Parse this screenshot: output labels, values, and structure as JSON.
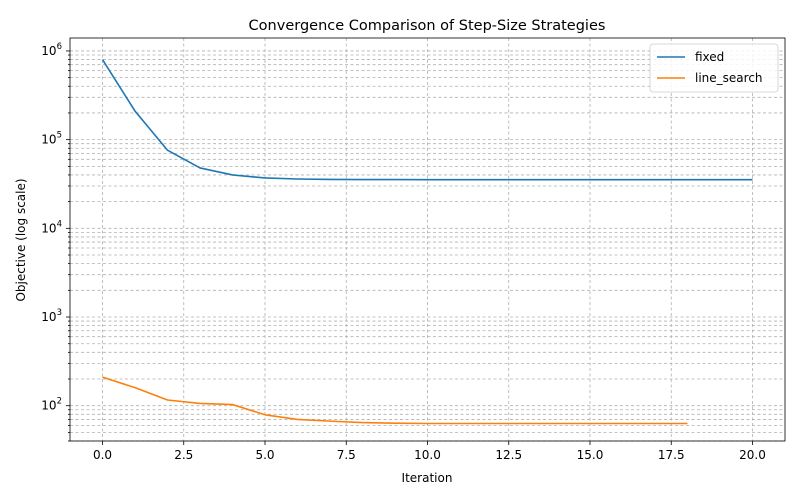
{
  "chart_data": {
    "type": "line",
    "title": "Convergence Comparison of Step-Size Strategies",
    "xlabel": "Iteration",
    "ylabel": "Objective (log scale)",
    "xlim": [
      -1,
      21
    ],
    "ylim": [
      40,
      1400000
    ],
    "yscale": "log",
    "grid": "on (major and minor, dashed)",
    "legend_position": "top-right",
    "x_ticks": [
      {
        "value": 0.0,
        "label": "0.0"
      },
      {
        "value": 2.5,
        "label": "2.5"
      },
      {
        "value": 5.0,
        "label": "5.0"
      },
      {
        "value": 7.5,
        "label": "7.5"
      },
      {
        "value": 10.0,
        "label": "10.0"
      },
      {
        "value": 12.5,
        "label": "12.5"
      },
      {
        "value": 15.0,
        "label": "15.0"
      },
      {
        "value": 17.5,
        "label": "17.5"
      },
      {
        "value": 20.0,
        "label": "20.0"
      }
    ],
    "y_ticks": [
      {
        "value": 100,
        "base": "10",
        "exp": "2"
      },
      {
        "value": 1000,
        "base": "10",
        "exp": "3"
      },
      {
        "value": 10000,
        "base": "10",
        "exp": "4"
      },
      {
        "value": 100000,
        "base": "10",
        "exp": "5"
      },
      {
        "value": 1000000,
        "base": "10",
        "exp": "6"
      }
    ],
    "series": [
      {
        "name": "fixed",
        "color": "#1f77b4",
        "x": [
          0,
          1,
          2,
          3,
          4,
          5,
          6,
          7,
          8,
          9,
          10,
          11,
          12,
          13,
          14,
          15,
          16,
          17,
          18,
          19,
          20
        ],
        "values": [
          800000,
          210000,
          76000,
          48000,
          40000,
          37000,
          36000,
          35600,
          35500,
          35450,
          35400,
          35400,
          35400,
          35400,
          35400,
          35400,
          35400,
          35400,
          35400,
          35400,
          35400
        ]
      },
      {
        "name": "line_search",
        "color": "#ff7f0e",
        "x": [
          0,
          1,
          2,
          3,
          4,
          5,
          6,
          7,
          8,
          9,
          10,
          11,
          12,
          13,
          14,
          15,
          16,
          17,
          18
        ],
        "values": [
          210,
          160,
          116,
          106,
          103,
          79,
          70,
          67,
          64.5,
          63.5,
          63,
          63,
          63,
          63,
          63,
          63,
          63,
          63,
          63
        ]
      }
    ]
  }
}
